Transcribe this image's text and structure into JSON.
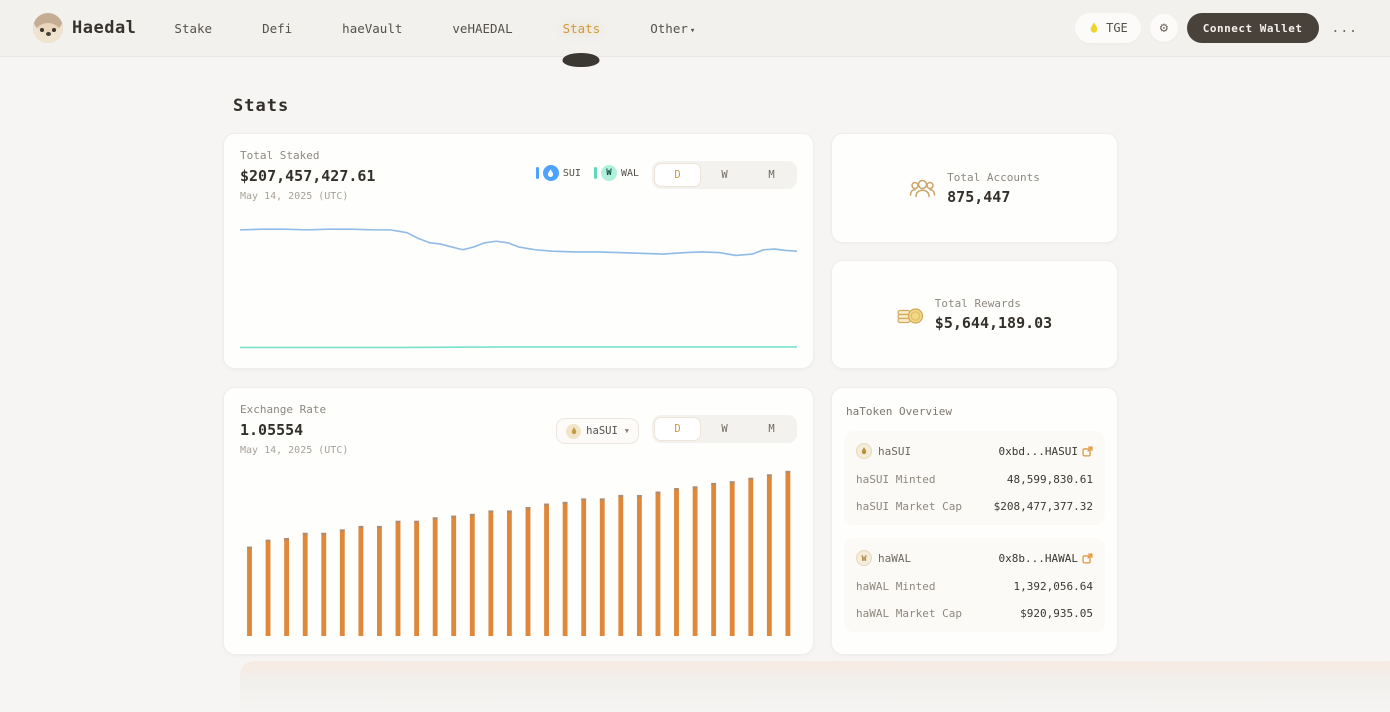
{
  "nav": {
    "brand": "Haedal",
    "items": [
      {
        "label": "Stake"
      },
      {
        "label": "Defi"
      },
      {
        "label": "haeVault"
      },
      {
        "label": "veHAEDAL"
      },
      {
        "label": "Stats"
      },
      {
        "label": "Other"
      }
    ],
    "active_item": "Stats",
    "tge_label": "TGE",
    "connect_wallet_label": "Connect Wallet",
    "more_label": "..."
  },
  "page": {
    "title": "Stats"
  },
  "total_staked": {
    "label": "Total Staked",
    "value": "$207,457,427.61",
    "date": "May 14, 2025 (UTC)",
    "legend": [
      {
        "label": "SUI",
        "color": "#4da2ff"
      },
      {
        "label": "WAL",
        "color": "#5fd9be"
      }
    ],
    "range_options": [
      "D",
      "W",
      "M"
    ],
    "range_selected": "D"
  },
  "total_accounts": {
    "label": "Total Accounts",
    "value": "875,447"
  },
  "total_rewards": {
    "label": "Total Rewards",
    "value": "$5,644,189.03"
  },
  "exchange_rate": {
    "label": "Exchange Rate",
    "value": "1.05554",
    "date": "May 14, 2025 (UTC)",
    "token_selected": "haSUI",
    "range_options": [
      "D",
      "W",
      "M"
    ],
    "range_selected": "D"
  },
  "hatoken_overview": {
    "title": "haToken Overview",
    "sections": [
      {
        "token": "haSUI",
        "address": "0xbd...HASUI",
        "rows": [
          [
            "haSUI Minted",
            "48,599,830.61"
          ],
          [
            "haSUI Market Cap",
            "$208,477,377.32"
          ]
        ]
      },
      {
        "token": "haWAL",
        "address": "0x8b...HAWAL",
        "rows": [
          [
            "haWAL Minted",
            "1,392,056.64"
          ],
          [
            "haWAL Market Cap",
            "$920,935.05"
          ]
        ]
      }
    ]
  },
  "chart_data": [
    {
      "type": "line",
      "title": "Total Staked",
      "current_value": "$207,457,427.61",
      "date": "May 14, 2025 (UTC)",
      "xlabel": "",
      "ylabel": "",
      "grid": false,
      "axis_labels_visible": false,
      "series": [
        {
          "name": "SUI",
          "color": "#8fbbe6",
          "points_pct": [
            [
              0,
              14
            ],
            [
              4,
              13.5
            ],
            [
              8,
              13.5
            ],
            [
              12,
              14
            ],
            [
              16,
              13.5
            ],
            [
              20,
              13.5
            ],
            [
              24,
              14
            ],
            [
              27,
              14
            ],
            [
              30,
              16
            ],
            [
              32,
              20
            ],
            [
              34,
              23
            ],
            [
              36,
              24
            ],
            [
              38,
              26
            ],
            [
              40,
              28
            ],
            [
              42,
              26
            ],
            [
              44,
              23
            ],
            [
              46,
              22
            ],
            [
              48,
              23
            ],
            [
              50,
              26
            ],
            [
              53,
              28
            ],
            [
              56,
              29
            ],
            [
              60,
              29.5
            ],
            [
              64,
              29.5
            ],
            [
              68,
              30
            ],
            [
              72,
              30.5
            ],
            [
              76,
              31
            ],
            [
              80,
              30
            ],
            [
              83,
              29.5
            ],
            [
              86,
              30
            ],
            [
              89,
              32
            ],
            [
              92,
              31
            ],
            [
              94,
              28
            ],
            [
              96,
              27.5
            ],
            [
              98,
              28.5
            ],
            [
              100,
              29
            ]
          ]
        },
        {
          "name": "WAL",
          "color": "#79e2c9",
          "points_pct": [
            [
              0,
              96.8
            ],
            [
              30,
              96.8
            ],
            [
              50,
              96.4
            ],
            [
              75,
              96.4
            ],
            [
              100,
              96.4
            ]
          ]
        }
      ]
    },
    {
      "type": "bar",
      "title": "Exchange Rate (haSUI/SUI)",
      "current_value": "1.05554",
      "date": "May 14, 2025 (UTC)",
      "xlabel": "",
      "ylabel": "",
      "grid": false,
      "axis_labels_visible": false,
      "color": "#e0883a",
      "tip_color": "#8b9097",
      "bar_heights_pct": [
        52,
        56,
        57,
        60,
        60,
        62,
        64,
        64,
        67,
        67,
        69,
        70,
        71,
        73,
        73,
        75,
        77,
        78,
        80,
        80,
        82,
        82,
        84,
        86,
        87,
        89,
        90,
        92,
        94,
        96
      ]
    }
  ],
  "colors": {
    "accent_orange": "#cf9a3e",
    "bar_orange": "#e0883a",
    "sui_blue": "#4da2ff",
    "wal_teal": "#5fd9be",
    "dark_button": "#48423a",
    "card_bg": "#fefefd",
    "page_bg": "#f6f5f3"
  }
}
